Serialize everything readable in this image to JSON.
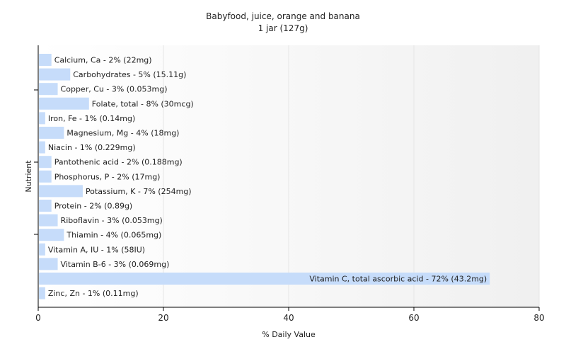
{
  "chart_data": {
    "type": "bar",
    "orientation": "horizontal",
    "title": "Babyfood, juice, orange and banana",
    "subtitle": "1 jar (127g)",
    "xlabel": "% Daily Value",
    "ylabel": "Nutrient",
    "xlim": [
      0,
      80
    ],
    "xticks": [
      0,
      20,
      40,
      60,
      80
    ],
    "grid": true,
    "bar_color": "#c6dcfa",
    "categories": [
      "Calcium, Ca - 2% (22mg)",
      "Carbohydrates - 5% (15.11g)",
      "Copper, Cu - 3% (0.053mg)",
      "Folate, total - 8% (30mcg)",
      "Iron, Fe - 1% (0.14mg)",
      "Magnesium, Mg - 4% (18mg)",
      "Niacin - 1% (0.229mg)",
      "Pantothenic acid - 2% (0.188mg)",
      "Phosphorus, P - 2% (17mg)",
      "Potassium, K - 7% (254mg)",
      "Protein - 2% (0.89g)",
      "Riboflavin - 3% (0.053mg)",
      "Thiamin - 4% (0.065mg)",
      "Vitamin A, IU - 1% (58IU)",
      "Vitamin B-6 - 3% (0.069mg)",
      "Vitamin C, total ascorbic acid - 72% (43.2mg)",
      "Zinc, Zn - 1% (0.11mg)"
    ],
    "values": [
      2,
      5,
      3,
      8,
      1,
      4,
      1,
      2,
      2,
      7,
      2,
      3,
      4,
      1,
      3,
      72,
      1
    ]
  }
}
